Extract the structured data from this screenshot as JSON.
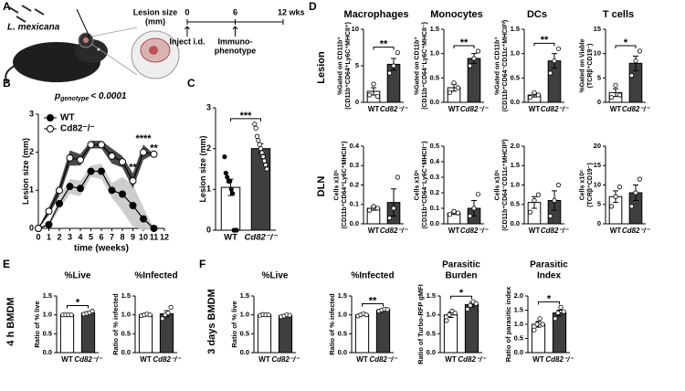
{
  "figure": {
    "panel_labels": [
      "A",
      "B",
      "C",
      "D",
      "E",
      "F"
    ],
    "row_labels": [
      "Lesion",
      "DLN"
    ],
    "side_labels": [
      "4 h BMDM",
      "3 days BMDM"
    ]
  },
  "diagram": {
    "species": "L. mexicana",
    "lesion_label": [
      "Lesion size",
      "(mm)"
    ],
    "xlim": [
      0,
      12
    ],
    "ticks": [
      0,
      6,
      {
        "value": 12,
        "label": "12 wks"
      }
    ],
    "events": [
      {
        "at": 0,
        "label": [
          "Inject i.d."
        ]
      },
      {
        "at": 6,
        "label": [
          "Immuno-",
          "phenotype"
        ]
      }
    ]
  },
  "chart_data": [
    {
      "type": "line",
      "annotation": {
        "text": "p",
        "sub": "genotype",
        "rest": "< 0.0001"
      },
      "xlabel": "time (weeks)",
      "ylabel": [
        "Lesion size (mm)"
      ],
      "xlim": [
        0,
        12
      ],
      "xticks": [
        0,
        1,
        2,
        3,
        4,
        5,
        6,
        7,
        8,
        9,
        10,
        11,
        12
      ],
      "ylim": [
        0,
        3
      ],
      "yticks": [
        0,
        1,
        2,
        3
      ],
      "legend": "upper left",
      "series": [
        {
          "name": "WT",
          "color": "#000000",
          "band_color": "#c8c8c8",
          "x": [
            0,
            1,
            2,
            3,
            4,
            5,
            6,
            7,
            8,
            9,
            10,
            11
          ],
          "values": [
            0,
            0.1,
            0.65,
            1.1,
            1.05,
            1.5,
            1.5,
            1.0,
            0.9,
            0.6,
            0.25,
            0
          ],
          "errors": [
            0,
            0.05,
            0.15,
            0.2,
            0.2,
            0.15,
            0.2,
            0.2,
            0.45,
            0.55,
            0.3,
            0
          ]
        },
        {
          "name": "Cd82⁻/⁻",
          "color": "#ffffff",
          "band_color": "#404040",
          "x": [
            0,
            1,
            2,
            3,
            4,
            5,
            6,
            7,
            8,
            9,
            10,
            11
          ],
          "values": [
            0,
            0.45,
            1.0,
            1.85,
            1.8,
            2.2,
            2.2,
            1.9,
            1.75,
            1.25,
            2.0,
            1.95
          ],
          "errors": [
            0,
            0.1,
            0.15,
            0.2,
            0.15,
            0.1,
            0.1,
            0.2,
            0.15,
            0.2,
            0.2,
            0
          ]
        }
      ],
      "significance": [
        {
          "x": 9,
          "text": "**"
        },
        {
          "x": 10,
          "text": "****"
        },
        {
          "x": 11,
          "text": "**"
        }
      ]
    },
    {
      "type": "bar",
      "ylabel": [
        "Lesion size (mm)"
      ],
      "categories": [
        "WT",
        "Cd82⁻/⁻"
      ],
      "values": [
        1.05,
        2.0
      ],
      "errors": [
        0.2,
        0.12
      ],
      "points": [
        [
          1.8,
          1.4,
          1.3,
          1.2,
          1.2,
          1.0,
          0.9,
          0,
          0,
          0
        ],
        [
          2.6,
          2.5,
          2.3,
          2.2,
          2.1,
          2.0,
          1.9,
          1.8,
          1.7,
          1.6,
          1.5
        ]
      ],
      "colors": [
        "#ffffff",
        "#3f3f3f"
      ],
      "point_colors": [
        "#000000",
        "#ffffff"
      ],
      "ylim": [
        0,
        3
      ],
      "yticks": [
        0,
        1,
        2,
        3
      ],
      "significance": "***"
    },
    {
      "type": "bar",
      "title": "Macrophages",
      "ylabel": [
        "%Gated on CD11b⁺",
        "(CD11b⁺CD64⁺Ly6C⁺MHCII⁺)"
      ],
      "categories": [
        "WT",
        "Cd82⁻/⁻"
      ],
      "values": [
        1.5,
        5.2
      ],
      "errors": [
        0.5,
        0.8
      ],
      "points": [
        [
          1.0,
          2.5,
          0.8
        ],
        [
          4.0,
          5.0,
          6.8
        ]
      ],
      "colors": [
        "#ffffff",
        "#3f3f3f"
      ],
      "point_colors": [
        "#ffffff",
        "#ffffff"
      ],
      "ylim": [
        0,
        10
      ],
      "yticks": [
        0,
        5,
        10
      ],
      "significance": "**"
    },
    {
      "type": "bar",
      "title": "Monocytes",
      "ylabel": [
        "%Gated on CD11b⁺",
        "(CD11b⁺CD64⁻Ly6C⁺MHCII⁻)"
      ],
      "categories": [
        "WT",
        "Cd82⁻/⁻"
      ],
      "values": [
        0.3,
        0.9
      ],
      "errors": [
        0.07,
        0.1
      ],
      "points": [
        [
          0.2,
          0.4,
          0.3
        ],
        [
          0.75,
          0.9,
          1.05
        ]
      ],
      "colors": [
        "#ffffff",
        "#3f3f3f"
      ],
      "point_colors": [
        "#ffffff",
        "#ffffff"
      ],
      "ylim": [
        0,
        1.5
      ],
      "yticks": [
        {
          "value": 0,
          "label": "0.0"
        },
        0.5,
        {
          "value": 1,
          "label": "1.0"
        },
        1.5
      ],
      "significance": "**"
    },
    {
      "type": "bar",
      "title": "DCs",
      "ylabel": [
        "%Gated on CD11b⁺",
        "(CD11b⁺CD64⁻CD11c⁺MHCIIʰⁱ)"
      ],
      "categories": [
        "WT",
        "Cd82⁻/⁻"
      ],
      "values": [
        0.15,
        0.85
      ],
      "errors": [
        0.04,
        0.15
      ],
      "points": [
        [
          0.1,
          0.2,
          0.15
        ],
        [
          0.6,
          0.85,
          1.1
        ]
      ],
      "colors": [
        "#ffffff",
        "#3f3f3f"
      ],
      "point_colors": [
        "#ffffff",
        "#ffffff"
      ],
      "ylim": [
        0,
        1.5
      ],
      "yticks": [
        {
          "value": 0,
          "label": "0.0"
        },
        0.5,
        {
          "value": 1,
          "label": "1.0"
        },
        1.5
      ],
      "significance": "**"
    },
    {
      "type": "bar",
      "title": "T cells",
      "ylabel": [
        "%Gated on Viable",
        "(TCRβ⁺CD19⁻)"
      ],
      "categories": [
        "WT",
        "Cd82⁻/⁻"
      ],
      "values": [
        2,
        8
      ],
      "errors": [
        0.8,
        1.5
      ],
      "points": [
        [
          1.0,
          3.5,
          1.5
        ],
        [
          5.5,
          8.5,
          10.5
        ]
      ],
      "colors": [
        "#ffffff",
        "#3f3f3f"
      ],
      "point_colors": [
        "#ffffff",
        "#ffffff"
      ],
      "ylim": [
        0,
        15
      ],
      "yticks": [
        0,
        5,
        10,
        15
      ],
      "significance": "*"
    },
    {
      "type": "bar",
      "ylabel": [
        "Cells x10⁵",
        "(CD11b⁺CD64⁺Ly6C⁺MHCII⁺)"
      ],
      "categories": [
        "WT",
        "Cd82⁻/⁻"
      ],
      "values": [
        0.08,
        0.11
      ],
      "errors": [
        0.01,
        0.07
      ],
      "points": [
        [
          0.07,
          0.09,
          0.08
        ],
        [
          0.03,
          0.08,
          0.24
        ]
      ],
      "colors": [
        "#ffffff",
        "#3f3f3f"
      ],
      "point_colors": [
        "#ffffff",
        "#ffffff"
      ],
      "ylim": [
        0,
        0.4
      ],
      "yticks": [
        {
          "value": 0,
          "label": "0.0"
        },
        0.1,
        0.2,
        0.3,
        0.4
      ]
    },
    {
      "type": "bar",
      "ylabel": [
        "Cells x10⁵",
        "(CD11b⁺CD64⁻Ly6C⁺MHCII⁻)"
      ],
      "categories": [
        "WT",
        "Cd82⁻/⁻"
      ],
      "values": [
        0.07,
        0.1
      ],
      "errors": [
        0.01,
        0.05
      ],
      "points": [
        [
          0.06,
          0.08,
          0.07
        ],
        [
          0.05,
          0.1,
          0.19
        ]
      ],
      "colors": [
        "#ffffff",
        "#3f3f3f"
      ],
      "point_colors": [
        "#ffffff",
        "#ffffff"
      ],
      "ylim": [
        0,
        0.5
      ],
      "yticks": [
        {
          "value": 0,
          "label": "0.0"
        },
        0.1,
        0.2,
        0.3,
        0.4,
        0.5
      ]
    },
    {
      "type": "bar",
      "ylabel": [
        "Cells x10⁵",
        "(CD11b⁺CD64⁻CD11c⁺MHCIIʰⁱ)"
      ],
      "categories": [
        "WT",
        "Cd82⁻/⁻"
      ],
      "values": [
        0.55,
        0.6
      ],
      "errors": [
        0.15,
        0.25
      ],
      "points": [
        [
          0.3,
          0.6,
          0.75
        ],
        [
          0.2,
          0.6,
          1.0
        ]
      ],
      "colors": [
        "#ffffff",
        "#3f3f3f"
      ],
      "point_colors": [
        "#ffffff",
        "#ffffff"
      ],
      "ylim": [
        0,
        2
      ],
      "yticks": [
        {
          "value": 0,
          "label": "0.0"
        },
        0.5,
        {
          "value": 1,
          "label": "1.0"
        },
        1.5,
        {
          "value": 2,
          "label": "2.0"
        }
      ]
    },
    {
      "type": "bar",
      "ylabel": [
        "Cells x10⁶",
        "(TCRβ⁺CD19⁻)"
      ],
      "categories": [
        "WT",
        "Cd82⁻/⁻"
      ],
      "values": [
        7,
        8
      ],
      "errors": [
        1.5,
        2
      ],
      "points": [
        [
          4.5,
          7,
          9.5
        ],
        [
          4.5,
          8,
          11.5
        ]
      ],
      "colors": [
        "#ffffff",
        "#3f3f3f"
      ],
      "point_colors": [
        "#ffffff",
        "#ffffff"
      ],
      "ylim": [
        0,
        20
      ],
      "yticks": [
        0,
        5,
        10,
        15,
        20
      ]
    },
    {
      "type": "bar",
      "title": "%Live",
      "ylabel": [
        "Ratio of % live"
      ],
      "categories": [
        "WT",
        "Cd82⁻/⁻"
      ],
      "values": [
        1.0,
        1.05
      ],
      "errors": [
        0.005,
        0.03
      ],
      "points": [
        [
          1.0,
          1.0,
          1.0,
          1.0
        ],
        [
          1.02,
          1.04,
          1.06,
          1.1
        ]
      ],
      "colors": [
        "#ffffff",
        "#3f3f3f"
      ],
      "point_colors": [
        "#ffffff",
        "#ffffff"
      ],
      "ylim": [
        0,
        1.5
      ],
      "yticks": [
        {
          "value": 0,
          "label": "0.0"
        },
        0.5,
        {
          "value": 1,
          "label": "1.0"
        },
        1.5
      ],
      "significance": "*"
    },
    {
      "type": "bar",
      "title": "%Infected",
      "ylabel": [
        "Ratio of % infected"
      ],
      "categories": [
        "WT",
        "Cd82⁻/⁻"
      ],
      "values": [
        1.0,
        1.03
      ],
      "errors": [
        0.02,
        0.08
      ],
      "points": [
        [
          0.98,
          1.0,
          1.02,
          1.0
        ],
        [
          0.9,
          1.0,
          1.05,
          1.2
        ]
      ],
      "colors": [
        "#ffffff",
        "#3f3f3f"
      ],
      "point_colors": [
        "#ffffff",
        "#ffffff"
      ],
      "ylim": [
        0,
        1.5
      ],
      "yticks": [
        {
          "value": 0,
          "label": "0.0"
        },
        0.5,
        {
          "value": 1,
          "label": "1.0"
        },
        1.5
      ]
    },
    {
      "type": "bar",
      "title": "%Live",
      "ylabel": [
        "Ratio of % live"
      ],
      "categories": [
        "WT",
        "Cd82⁻/⁻"
      ],
      "values": [
        1.0,
        0.98
      ],
      "errors": [
        0.01,
        0.02
      ],
      "points": [
        [
          0.99,
          1.01,
          1.0,
          1.0
        ],
        [
          0.95,
          0.97,
          1.0,
          0.99
        ]
      ],
      "colors": [
        "#ffffff",
        "#3f3f3f"
      ],
      "point_colors": [
        "#ffffff",
        "#ffffff"
      ],
      "ylim": [
        0,
        1.5
      ],
      "yticks": [
        {
          "value": 0,
          "label": "0.0"
        },
        0.5,
        {
          "value": 1,
          "label": "1.0"
        },
        1.5
      ]
    },
    {
      "type": "bar",
      "title": "%Infected",
      "ylabel": [
        "Ratio of % infected"
      ],
      "categories": [
        "WT",
        "Cd82⁻/⁻"
      ],
      "values": [
        1.0,
        1.13
      ],
      "errors": [
        0.02,
        0.02
      ],
      "points": [
        [
          0.97,
          1.0,
          1.03,
          1.0
        ],
        [
          1.1,
          1.13,
          1.15,
          1.14
        ]
      ],
      "colors": [
        "#ffffff",
        "#3f3f3f"
      ],
      "point_colors": [
        "#ffffff",
        "#ffffff"
      ],
      "ylim": [
        0,
        1.5
      ],
      "yticks": [
        {
          "value": 0,
          "label": "0.0"
        },
        0.5,
        {
          "value": 1,
          "label": "1.0"
        },
        1.5
      ],
      "significance": "**"
    },
    {
      "type": "bar",
      "title": [
        "Parasitic",
        "Burden"
      ],
      "ylabel": [
        "Ratio of Turbo-RFP gMFI"
      ],
      "categories": [
        "WT",
        "Cd82⁻/⁻"
      ],
      "values": [
        1.0,
        1.27
      ],
      "errors": [
        0.07,
        0.06
      ],
      "points": [
        [
          0.85,
          1.0,
          1.1,
          1.05
        ],
        [
          1.15,
          1.25,
          1.35,
          1.3
        ]
      ],
      "colors": [
        "#ffffff",
        "#3f3f3f"
      ],
      "point_colors": [
        "#ffffff",
        "#ffffff"
      ],
      "ylim": [
        0,
        1.5
      ],
      "yticks": [
        {
          "value": 0,
          "label": "0.0"
        },
        0.5,
        {
          "value": 1,
          "label": "1.0"
        },
        1.5
      ],
      "significance": "*"
    },
    {
      "type": "bar",
      "title": [
        "Parasitic",
        "Index"
      ],
      "ylabel": [
        "Ratio of parasitic index"
      ],
      "categories": [
        "WT",
        "Cd82⁻/⁻"
      ],
      "values": [
        1.0,
        1.4
      ],
      "errors": [
        0.1,
        0.1
      ],
      "points": [
        [
          0.8,
          1.0,
          1.2,
          1.0
        ],
        [
          1.2,
          1.4,
          1.6,
          1.45
        ]
      ],
      "colors": [
        "#ffffff",
        "#3f3f3f"
      ],
      "point_colors": [
        "#ffffff",
        "#ffffff"
      ],
      "ylim": [
        0,
        2
      ],
      "yticks": [
        {
          "value": 0,
          "label": "0.0"
        },
        0.5,
        {
          "value": 1,
          "label": "1.0"
        },
        1.5,
        {
          "value": 2,
          "label": "2.0"
        }
      ],
      "significance": "*"
    }
  ]
}
